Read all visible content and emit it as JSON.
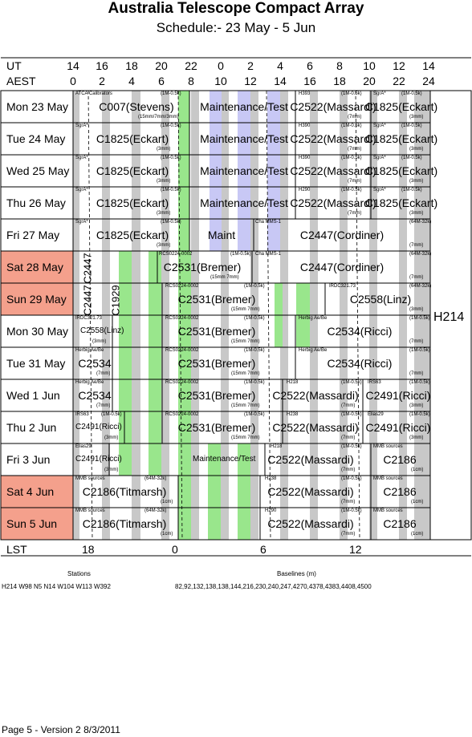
{
  "title": "Australia Telescope Compact Array",
  "subtitle": "Schedule:- 23 May - 5  Jun",
  "header": {
    "ut_label": "UT",
    "aest_label": "AEST",
    "ut_ticks": [
      "14",
      "16",
      "18",
      "20",
      "22",
      "0",
      "2",
      "4",
      "6",
      "8",
      "10",
      "12",
      "14"
    ],
    "aest_ticks": [
      "0",
      "2",
      "4",
      "6",
      "8",
      "10",
      "12",
      "14",
      "16",
      "18",
      "20",
      "22",
      "24"
    ]
  },
  "days": [
    {
      "label": "Mon  23 May",
      "weekend": false
    },
    {
      "label": "Tue  24 May",
      "weekend": false
    },
    {
      "label": "Wed  25 May",
      "weekend": false
    },
    {
      "label": "Thu  26 May",
      "weekend": false
    },
    {
      "label": "Fri    27 May",
      "weekend": false
    },
    {
      "label": "Sat  28 May",
      "weekend": true
    },
    {
      "label": "Sun  29 May",
      "weekend": true
    },
    {
      "label": "Mon  30 May",
      "weekend": false
    },
    {
      "label": "Tue  31 May",
      "weekend": false
    },
    {
      "label": "Wed   1  Jun",
      "weekend": false
    },
    {
      "label": "Thu    2  Jun",
      "weekend": false
    },
    {
      "label": "Fri     3  Jun",
      "weekend": false
    },
    {
      "label": "Sat    4  Jun",
      "weekend": true
    },
    {
      "label": "Sun   5  Jun",
      "weekend": true
    }
  ],
  "projects": [
    {
      "row": 0,
      "text": "C007(Stevens)",
      "x": 170
    },
    {
      "row": 0,
      "text": "Maintenance/Test",
      "x": 304
    },
    {
      "row": 0,
      "text": "C2522(Massardi)",
      "x": 415
    },
    {
      "row": 0,
      "text": "C1825(Eckart)",
      "x": 500
    },
    {
      "row": 1,
      "text": "C1825(Eckart)",
      "x": 165
    },
    {
      "row": 1,
      "text": "Maintenance/Test",
      "x": 304
    },
    {
      "row": 1,
      "text": "C2522(Massardi)",
      "x": 415
    },
    {
      "row": 1,
      "text": "C1825(Eckart)",
      "x": 500
    },
    {
      "row": 2,
      "text": "C1825(Eckart)",
      "x": 165
    },
    {
      "row": 2,
      "text": "Maintenance/Test",
      "x": 304
    },
    {
      "row": 2,
      "text": "C2522(Massardi)",
      "x": 415
    },
    {
      "row": 2,
      "text": "C1825(Eckart)",
      "x": 500
    },
    {
      "row": 3,
      "text": "C1825(Eckart)",
      "x": 165
    },
    {
      "row": 3,
      "text": "Maintenance/Test",
      "x": 304
    },
    {
      "row": 3,
      "text": "C2522(Massardi)",
      "x": 415
    },
    {
      "row": 3,
      "text": "C1825(Eckart)",
      "x": 500
    },
    {
      "row": 4,
      "text": "C1825(Eckart)",
      "x": 165
    },
    {
      "row": 4,
      "text": "Maint",
      "x": 276
    },
    {
      "row": 4,
      "text": "C2447(Cordiner)",
      "x": 426
    },
    {
      "row": 5,
      "text": "C2531(Bremer)",
      "x": 252
    },
    {
      "row": 5,
      "text": "C2447(Cordiner)",
      "x": 426
    },
    {
      "row": 6,
      "text": "C2531(Bremer)",
      "x": 270
    },
    {
      "row": 6,
      "text": "C2558(Linz)",
      "x": 474
    },
    {
      "row": 7,
      "text": "C2531(Bremer)",
      "x": 270
    },
    {
      "row": 7,
      "text": "C2534(Ricci)",
      "x": 448
    },
    {
      "row": 8,
      "text": "C2534",
      "x": 118
    },
    {
      "row": 8,
      "text": "C2531(Bremer)",
      "x": 270
    },
    {
      "row": 8,
      "text": "C2534(Ricci)",
      "x": 448
    },
    {
      "row": 9,
      "text": "C2534",
      "x": 118
    },
    {
      "row": 9,
      "text": "C2531(Bremer)",
      "x": 270
    },
    {
      "row": 9,
      "text": "C2522(Massardi)",
      "x": 393
    },
    {
      "row": 9,
      "text": "C2491(Ricci)",
      "x": 496
    },
    {
      "row": 10,
      "text": "C2531(Bremer)",
      "x": 270
    },
    {
      "row": 10,
      "text": "C2522(Massardi)",
      "x": 393
    },
    {
      "row": 10,
      "text": "C2491(Ricci)",
      "x": 496
    },
    {
      "row": 11,
      "text": "C2522(Massardi)",
      "x": 387
    },
    {
      "row": 11,
      "text": "C2186",
      "x": 498
    },
    {
      "row": 12,
      "text": "C2186(Titmarsh)",
      "x": 155
    },
    {
      "row": 12,
      "text": "C2522(Massardi)",
      "x": 387
    },
    {
      "row": 12,
      "text": "C2186",
      "x": 498
    },
    {
      "row": 13,
      "text": "C2186(Titmarsh)",
      "x": 155
    },
    {
      "row": 13,
      "text": "C2522(Massardi)",
      "x": 387
    },
    {
      "row": 13,
      "text": "C2186",
      "x": 498
    }
  ],
  "small_projects": [
    {
      "row": 7,
      "text": "C2558(Linz)",
      "x": 100
    },
    {
      "row": 10,
      "text": "C2491(Ricci)",
      "x": 94
    },
    {
      "row": 11,
      "text": "C2491(Ricci)",
      "x": 94
    },
    {
      "row": 11,
      "text": "Maintenance/Test",
      "x": 240
    }
  ],
  "vertical_projects": [
    {
      "text": "C2447",
      "row_start": 5,
      "x": 110
    },
    {
      "text": "C2447",
      "row_start": 6,
      "x": 110
    },
    {
      "text": "C1929",
      "row_start": 6,
      "x": 145
    }
  ],
  "sources": [
    {
      "row": 0,
      "text": "ATCA Calibrators",
      "x": 94
    },
    {
      "row": 0,
      "text": "(1M-0.5k)",
      "x": 200
    },
    {
      "row": 0,
      "text": "(15mm/7mm/3mm)",
      "x": 172
    },
    {
      "row": 0,
      "text": "H393",
      "x": 372
    },
    {
      "row": 0,
      "text": "(1M-0.5k)",
      "x": 425
    },
    {
      "row": 0,
      "text": "(7mm)",
      "x": 433
    },
    {
      "row": 0,
      "text": "SgrA*",
      "x": 465
    },
    {
      "row": 0,
      "text": "(1M-0.5k)",
      "x": 500
    },
    {
      "row": 0,
      "text": "(3mm)",
      "x": 510
    },
    {
      "row": 1,
      "text": "SgrA*",
      "x": 94
    },
    {
      "row": 1,
      "text": "(1M-0.5k)",
      "x": 200
    },
    {
      "row": 1,
      "text": "(3mm)",
      "x": 195
    },
    {
      "row": 1,
      "text": "H390",
      "x": 372
    },
    {
      "row": 1,
      "text": "(1M-0.5k)",
      "x": 425
    },
    {
      "row": 1,
      "text": "(7mm)",
      "x": 433
    },
    {
      "row": 1,
      "text": "SgrA*",
      "x": 465
    },
    {
      "row": 1,
      "text": "(1M-0.5k)",
      "x": 500
    },
    {
      "row": 1,
      "text": "(3mm)",
      "x": 510
    },
    {
      "row": 2,
      "text": "SgrA*",
      "x": 94
    },
    {
      "row": 2,
      "text": "(1M-0.5k)",
      "x": 200
    },
    {
      "row": 2,
      "text": "(3mm)",
      "x": 195
    },
    {
      "row": 2,
      "text": "H390",
      "x": 372
    },
    {
      "row": 2,
      "text": "(1M-0.5k)",
      "x": 425
    },
    {
      "row": 2,
      "text": "(7mm)",
      "x": 433
    },
    {
      "row": 2,
      "text": "SgrA*",
      "x": 465
    },
    {
      "row": 2,
      "text": "(1M-0.5k)",
      "x": 500
    },
    {
      "row": 2,
      "text": "(3mm)",
      "x": 510
    },
    {
      "row": 3,
      "text": "SgrA*",
      "x": 94
    },
    {
      "row": 3,
      "text": "(1M-0.5k)",
      "x": 200
    },
    {
      "row": 3,
      "text": "(3mm)",
      "x": 195
    },
    {
      "row": 3,
      "text": "H290",
      "x": 372
    },
    {
      "row": 3,
      "text": "(1M-0.5k)",
      "x": 425
    },
    {
      "row": 3,
      "text": "(7mm)",
      "x": 433
    },
    {
      "row": 3,
      "text": "SgrA*",
      "x": 465
    },
    {
      "row": 3,
      "text": "(1M-0.5k)",
      "x": 500
    },
    {
      "row": 3,
      "text": "(3mm)",
      "x": 510
    },
    {
      "row": 4,
      "text": "SgrA*",
      "x": 94
    },
    {
      "row": 4,
      "text": "(1M-0.5k)",
      "x": 200
    },
    {
      "row": 4,
      "text": "(3mm)",
      "x": 195
    },
    {
      "row": 4,
      "text": "Cha MMS-1",
      "x": 318
    },
    {
      "row": 4,
      "text": "(64M-32k)",
      "x": 510
    },
    {
      "row": 4,
      "text": "(7mm)",
      "x": 510
    },
    {
      "row": 5,
      "text": "RCS0224-0002",
      "x": 198
    },
    {
      "row": 5,
      "text": "(1M-0.5k)",
      "x": 287
    },
    {
      "row": 5,
      "text": "(15mm 7mm)",
      "x": 262
    },
    {
      "row": 5,
      "text": "Cha MMS-1",
      "x": 318
    },
    {
      "row": 5,
      "text": "(64M-32k)",
      "x": 510
    },
    {
      "row": 5,
      "text": "(7mm)",
      "x": 510
    },
    {
      "row": 6,
      "text": "RCS0224-0002",
      "x": 206
    },
    {
      "row": 6,
      "text": "(1M-0.5k)",
      "x": 304
    },
    {
      "row": 6,
      "text": "(15mm 7mm)",
      "x": 288
    },
    {
      "row": 6,
      "text": "IRDC321.73",
      "x": 410
    },
    {
      "row": 6,
      "text": "(64M-32k)",
      "x": 510
    },
    {
      "row": 6,
      "text": "(3mm)",
      "x": 510
    },
    {
      "row": 7,
      "text": "IRDC321.73",
      "x": 94
    },
    {
      "row": 7,
      "text": "(3mm)",
      "x": 115
    },
    {
      "row": 7,
      "text": "RCS0224-0002",
      "x": 206
    },
    {
      "row": 7,
      "text": "(1M-0.5k)",
      "x": 304
    },
    {
      "row": 7,
      "text": "(15mm 7mm)",
      "x": 288
    },
    {
      "row": 7,
      "text": "Herbig Ae/Be",
      "x": 372
    },
    {
      "row": 7,
      "text": "(1M-0.5k)",
      "x": 510
    },
    {
      "row": 7,
      "text": "(7mm)",
      "x": 510
    },
    {
      "row": 8,
      "text": "Herbig Ae/Be",
      "x": 94
    },
    {
      "row": 8,
      "text": "(7mm)",
      "x": 120
    },
    {
      "row": 8,
      "text": "RCS0224-0002",
      "x": 206
    },
    {
      "row": 8,
      "text": "(1M-0.5k)",
      "x": 304
    },
    {
      "row": 8,
      "text": "(15mm 7mm)",
      "x": 288
    },
    {
      "row": 8,
      "text": "Herbig Ae/Be",
      "x": 372
    },
    {
      "row": 8,
      "text": "(1M-0.5k)",
      "x": 510
    },
    {
      "row": 8,
      "text": "(7mm)",
      "x": 510
    },
    {
      "row": 9,
      "text": "Herbig Ae/Be",
      "x": 94
    },
    {
      "row": 9,
      "text": "(7mm)",
      "x": 120
    },
    {
      "row": 9,
      "text": "RCS0224-0002",
      "x": 206
    },
    {
      "row": 9,
      "text": "(1M-0.5k)",
      "x": 304
    },
    {
      "row": 9,
      "text": "(15mm 7mm)",
      "x": 288
    },
    {
      "row": 9,
      "text": "H218",
      "x": 357
    },
    {
      "row": 9,
      "text": "(1M-0.5k)",
      "x": 425
    },
    {
      "row": 9,
      "text": "(7mm)",
      "x": 425
    },
    {
      "row": 9,
      "text": "IRS63",
      "x": 458
    },
    {
      "row": 9,
      "text": "(1M-0.5k)",
      "x": 510
    },
    {
      "row": 9,
      "text": "(3mm)",
      "x": 510
    },
    {
      "row": 10,
      "text": "IRS63",
      "x": 94
    },
    {
      "row": 10,
      "text": "(1M-0.5k)",
      "x": 126
    },
    {
      "row": 10,
      "text": "(3mm)",
      "x": 130
    },
    {
      "row": 10,
      "text": "RCS0224-0002",
      "x": 206
    },
    {
      "row": 10,
      "text": "(1M-0.5k)",
      "x": 304
    },
    {
      "row": 10,
      "text": "(15mm 7mm)",
      "x": 288
    },
    {
      "row": 10,
      "text": "H238",
      "x": 357
    },
    {
      "row": 10,
      "text": "(1M-0.5k)",
      "x": 425
    },
    {
      "row": 10,
      "text": "(7mm)",
      "x": 425
    },
    {
      "row": 10,
      "text": "Elias29",
      "x": 458
    },
    {
      "row": 10,
      "text": "(1M-0.5k)",
      "x": 510
    },
    {
      "row": 10,
      "text": "(3mm)",
      "x": 510
    },
    {
      "row": 11,
      "text": "Elias29",
      "x": 94
    },
    {
      "row": 11,
      "text": "(3mm)",
      "x": 130
    },
    {
      "row": 11,
      "text": "H218",
      "x": 337
    },
    {
      "row": 11,
      "text": "(1M-0.5k)",
      "x": 425
    },
    {
      "row": 11,
      "text": "(7mm)",
      "x": 425
    },
    {
      "row": 11,
      "text": "MMB sources",
      "x": 465
    },
    {
      "row": 11,
      "text": "(1cm)",
      "x": 512
    },
    {
      "row": 12,
      "text": "MMB sources",
      "x": 94
    },
    {
      "row": 12,
      "text": "(64M-32k)",
      "x": 180
    },
    {
      "row": 12,
      "text": "(1cm)",
      "x": 200
    },
    {
      "row": 12,
      "text": "H238",
      "x": 330
    },
    {
      "row": 12,
      "text": "(1M-0.5k)",
      "x": 425
    },
    {
      "row": 12,
      "text": "(7mm)",
      "x": 425
    },
    {
      "row": 12,
      "text": "MMB sources",
      "x": 465
    },
    {
      "row": 12,
      "text": "(1cm)",
      "x": 512
    },
    {
      "row": 13,
      "text": "MMB sources",
      "x": 94
    },
    {
      "row": 13,
      "text": "(64M-32k)",
      "x": 180
    },
    {
      "row": 13,
      "text": "(1cm)",
      "x": 200
    },
    {
      "row": 13,
      "text": "H290",
      "x": 330
    },
    {
      "row": 13,
      "text": "(1M-0.5k)",
      "x": 425
    },
    {
      "row": 13,
      "text": "(7mm)",
      "x": 425
    },
    {
      "row": 13,
      "text": "MMB sources",
      "x": 465
    },
    {
      "row": 13,
      "text": "(1cm)",
      "x": 512
    }
  ],
  "array_config": "H214",
  "lst": {
    "label": "LST",
    "ticks": [
      {
        "text": "18",
        "x": 110
      },
      {
        "text": "0",
        "x": 222
      },
      {
        "text": "6",
        "x": 332
      },
      {
        "text": "12",
        "x": 443
      }
    ]
  },
  "stations": {
    "heading": "Stations",
    "value": "H214   W98 N5 N14  W104  W113  W392"
  },
  "baselines": {
    "heading": "Baselines (m)",
    "value": "82,92,132,138,138,144,216,230,240,247,4270,4378,4383,4408,4500"
  },
  "footer": "Page 5 - Version 2  8/3/2011",
  "colors": {
    "weekend": "#f4a08c",
    "green": "#99e68c",
    "gray": "#c8c8c8",
    "lavender": "#c8c8f5"
  }
}
